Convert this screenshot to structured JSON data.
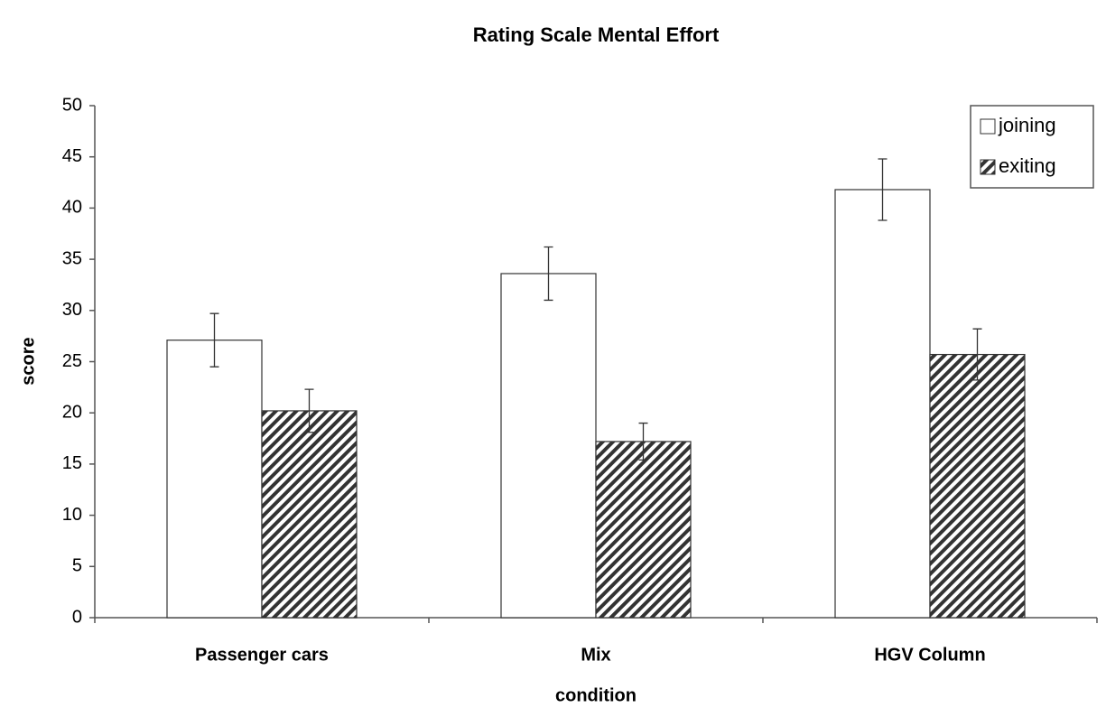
{
  "chart_data": {
    "type": "bar",
    "title": "Rating Scale Mental Effort",
    "x_label": "condition",
    "y_label": "score",
    "categories": [
      "Passenger cars",
      "Mix",
      "HGV Column"
    ],
    "series": [
      {
        "name": "joining",
        "color": "#ffffff",
        "values": [
          27.1,
          33.6,
          41.8
        ],
        "errors": [
          2.6,
          2.6,
          3.0
        ]
      },
      {
        "name": "exiting",
        "color": "#333333",
        "pattern": "diagonal-hatch",
        "values": [
          20.2,
          17.2,
          25.7
        ],
        "errors": [
          2.1,
          1.8,
          2.5
        ]
      }
    ],
    "ylim": [
      0,
      50
    ],
    "yticks": [
      0,
      5,
      10,
      15,
      20,
      25,
      30,
      35,
      40,
      45,
      50
    ],
    "grid": false,
    "legend": "top-right"
  }
}
